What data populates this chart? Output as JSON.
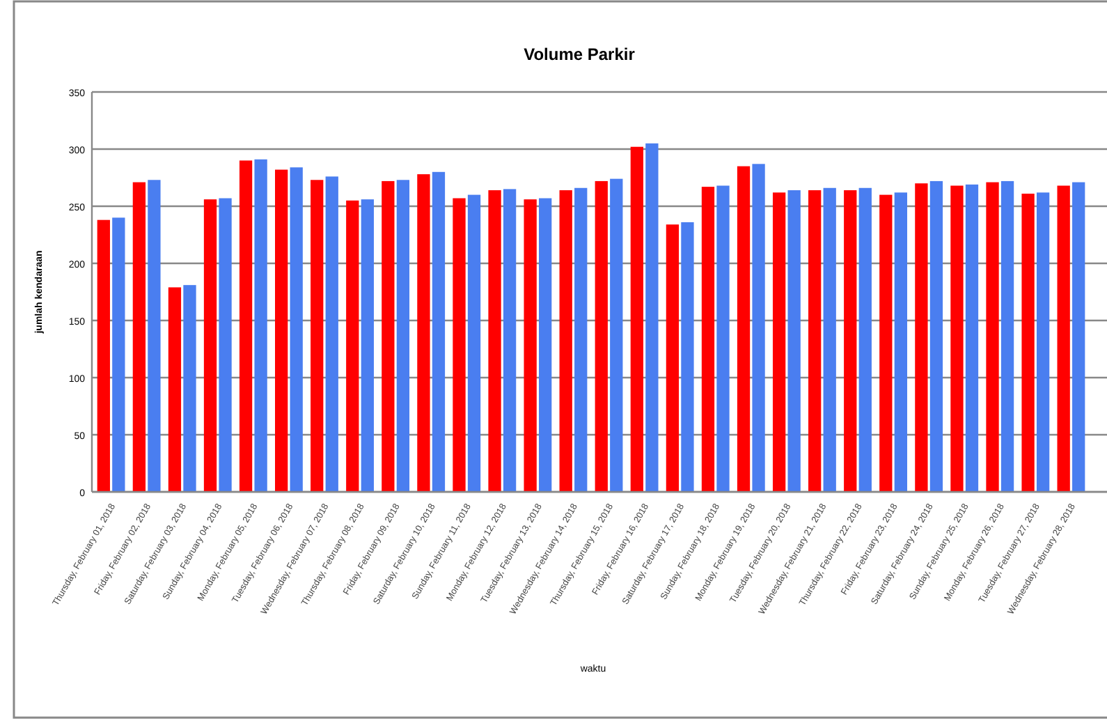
{
  "chart_data": {
    "type": "bar",
    "title": "Volume Parkir",
    "xlabel": "waktu",
    "ylabel": "jumlah kendaraan",
    "categories": [
      "Thursday, February 01, 2018",
      "Friday, February 02, 2018",
      "Saturday, February 03, 2018",
      "Sunday, February 04, 2018",
      "Monday, February 05, 2018",
      "Tuesday, February 06, 2018",
      "Wednesday, February 07, 2018",
      "Thursday, February 08, 2018",
      "Friday, February 09, 2018",
      "Saturday, February 10, 2018",
      "Sunday, February 11, 2018",
      "Monday, February 12, 2018",
      "Tuesday, February 13, 2018",
      "Wednesday, February 14, 2018",
      "Thursday, February 15, 2018",
      "Friday, February 16, 2018",
      "Saturday, February 17, 2018",
      "Sunday, February 18, 2018",
      "Monday, February 19, 2018",
      "Tuesday, February 20, 2018",
      "Wednesday, February 21, 2018",
      "Thursday, February 22, 2018",
      "Friday, February 23, 2018",
      "Saturday, February 24, 2018",
      "Sunday, February 25, 2018",
      "Monday, February 26, 2018",
      "Tuesday, February 27, 2018",
      "Wednesday, February 28, 2018"
    ],
    "series": [
      {
        "color": "#ff0000",
        "values": [
          238,
          271,
          179,
          256,
          290,
          282,
          273,
          255,
          272,
          278,
          257,
          264,
          256,
          264,
          272,
          302,
          234,
          267,
          285,
          262,
          264,
          264,
          260,
          270,
          268,
          271,
          261,
          268
        ]
      },
      {
        "color": "#4a7ef0",
        "values": [
          240,
          273,
          181,
          257,
          291,
          284,
          276,
          256,
          273,
          280,
          260,
          265,
          257,
          266,
          274,
          305,
          236,
          268,
          287,
          264,
          266,
          266,
          262,
          272,
          269,
          272,
          262,
          271
        ]
      }
    ],
    "ylim": [
      0,
      350
    ],
    "yticks": [
      0,
      50,
      100,
      150,
      200,
      250,
      300,
      350
    ],
    "grid": "y"
  }
}
